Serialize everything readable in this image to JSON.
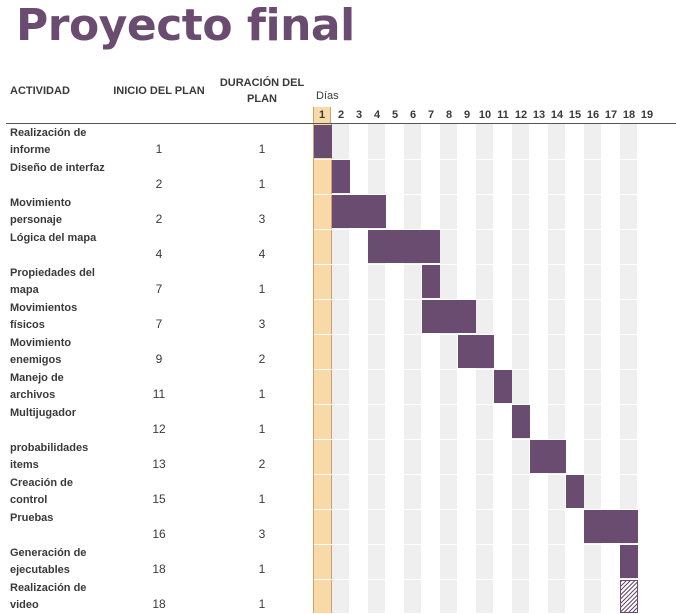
{
  "title": "Proyecto final",
  "headers": {
    "actividad": "ACTIVIDAD",
    "inicio": "INICIO DEL PLAN",
    "duracion": "DURACIÓN DEL PLAN",
    "dias": "Días"
  },
  "days": [
    "1",
    "2",
    "3",
    "4",
    "5",
    "6",
    "7",
    "8",
    "9",
    "10",
    "11",
    "12",
    "13",
    "14",
    "15",
    "16",
    "17",
    "18",
    "19"
  ],
  "current_day": 1,
  "colors": {
    "bar": "#6b4c71",
    "today": "#f9d9a7",
    "title": "#6b4c71",
    "stripe": "#efefef"
  },
  "tasks": [
    {
      "actividad": "Realización de informe",
      "inicio": "1",
      "duracion": "1",
      "start": 1,
      "length": 1
    },
    {
      "actividad": "Diseño de interfaz",
      "inicio": "2",
      "duracion": "1",
      "start": 2,
      "length": 1
    },
    {
      "actividad": "Movimiento personaje",
      "inicio": "2",
      "duracion": "3",
      "start": 2,
      "length": 3
    },
    {
      "actividad": "Lógica del mapa",
      "inicio": "4",
      "duracion": "4",
      "start": 4,
      "length": 4
    },
    {
      "actividad": "Propiedades del mapa",
      "inicio": "7",
      "duracion": "1",
      "start": 7,
      "length": 1
    },
    {
      "actividad": "Movimientos físicos",
      "inicio": "7",
      "duracion": "3",
      "start": 7,
      "length": 3
    },
    {
      "actividad": "Movimiento enemigos",
      "inicio": "9",
      "duracion": "2",
      "start": 9,
      "length": 2
    },
    {
      "actividad": "Manejo de archivos",
      "inicio": "11",
      "duracion": "1",
      "start": 11,
      "length": 1
    },
    {
      "actividad": "Multijugador",
      "inicio": "12",
      "duracion": "1",
      "start": 12,
      "length": 1
    },
    {
      "actividad": "probabilidades items",
      "inicio": "13",
      "duracion": "2",
      "start": 13,
      "length": 2
    },
    {
      "actividad": "Creación de control",
      "inicio": "15",
      "duracion": "1",
      "start": 15,
      "length": 1
    },
    {
      "actividad": "Pruebas",
      "inicio": "16",
      "duracion": "3",
      "start": 16,
      "length": 3
    },
    {
      "actividad": "Generación de ejecutables",
      "inicio": "18",
      "duracion": "1",
      "start": 18,
      "length": 1
    },
    {
      "actividad": "Realización de video",
      "inicio": "18",
      "duracion": "1",
      "start": 18,
      "length": 1,
      "status": "pending"
    }
  ]
}
